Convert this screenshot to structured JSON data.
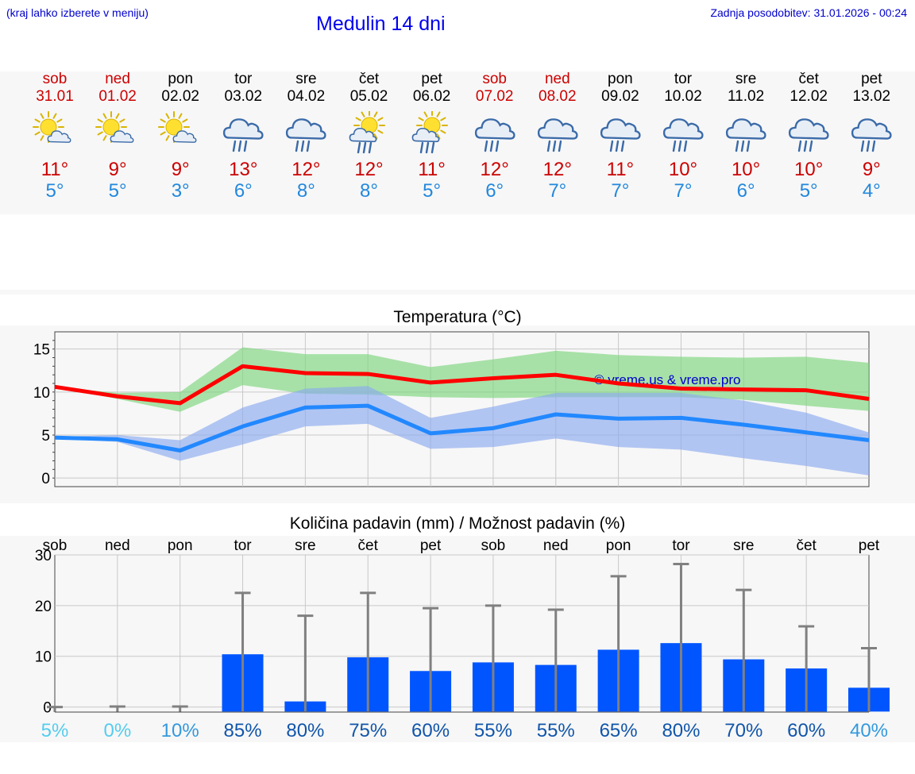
{
  "header": {
    "menu_hint": "(kraj lahko izberete v meniju)",
    "title": "Medulin 14 dni",
    "updated": "Zadnja posodobitev: 31.01.2026 - 00:24"
  },
  "colors": {
    "weekend": "#cc0000",
    "weekday": "#000000",
    "max_temp": "#cc0000",
    "min_temp": "#2288dd",
    "bar": "#0055ff",
    "whisker": "#808080"
  },
  "days": [
    {
      "name": "sob",
      "date": "31.01",
      "weekend": true,
      "icon": "sun-cloud-icon",
      "tmax": "11°",
      "tmin": "5°"
    },
    {
      "name": "ned",
      "date": "01.02",
      "weekend": true,
      "icon": "sun-cloud-icon",
      "tmax": "9°",
      "tmin": "5°"
    },
    {
      "name": "pon",
      "date": "02.02",
      "weekend": false,
      "icon": "sun-cloud-icon",
      "tmax": "9°",
      "tmin": "3°"
    },
    {
      "name": "tor",
      "date": "03.02",
      "weekend": false,
      "icon": "rain-cloud-icon",
      "tmax": "13°",
      "tmin": "6°"
    },
    {
      "name": "sre",
      "date": "04.02",
      "weekend": false,
      "icon": "rain-cloud-icon",
      "tmax": "12°",
      "tmin": "8°"
    },
    {
      "name": "čet",
      "date": "05.02",
      "weekend": false,
      "icon": "sun-rain-icon",
      "tmax": "12°",
      "tmin": "8°"
    },
    {
      "name": "pet",
      "date": "06.02",
      "weekend": false,
      "icon": "sun-rain-icon",
      "tmax": "11°",
      "tmin": "5°"
    },
    {
      "name": "sob",
      "date": "07.02",
      "weekend": true,
      "icon": "rain-cloud-icon",
      "tmax": "12°",
      "tmin": "6°"
    },
    {
      "name": "ned",
      "date": "08.02",
      "weekend": true,
      "icon": "rain-cloud-icon",
      "tmax": "12°",
      "tmin": "7°"
    },
    {
      "name": "pon",
      "date": "09.02",
      "weekend": false,
      "icon": "rain-cloud-icon",
      "tmax": "11°",
      "tmin": "7°"
    },
    {
      "name": "tor",
      "date": "10.02",
      "weekend": false,
      "icon": "rain-cloud-icon",
      "tmax": "10°",
      "tmin": "7°"
    },
    {
      "name": "sre",
      "date": "11.02",
      "weekend": false,
      "icon": "rain-cloud-icon",
      "tmax": "10°",
      "tmin": "6°"
    },
    {
      "name": "čet",
      "date": "12.02",
      "weekend": false,
      "icon": "rain-cloud-icon",
      "tmax": "10°",
      "tmin": "5°"
    },
    {
      "name": "pet",
      "date": "13.02",
      "weekend": false,
      "icon": "rain-cloud-icon",
      "tmax": "9°",
      "tmin": "4°"
    }
  ],
  "chart_data": [
    {
      "type": "line",
      "title": "Temperatura (°C)",
      "watermark": "© vreme.us & vreme.pro",
      "x": [
        0,
        1,
        2,
        3,
        4,
        5,
        6,
        7,
        8,
        9,
        10,
        11,
        12,
        13
      ],
      "ylim": [
        -1,
        17
      ],
      "yticks": [
        0,
        5,
        10,
        15
      ],
      "series": [
        {
          "name": "max",
          "color": "#ff0000",
          "values": [
            10.6,
            9.5,
            8.7,
            13.0,
            12.2,
            12.1,
            11.1,
            11.6,
            12.0,
            11.0,
            10.4,
            10.3,
            10.2,
            9.2
          ]
        },
        {
          "name": "min",
          "color": "#2288ff",
          "values": [
            4.7,
            4.5,
            3.2,
            6.0,
            8.2,
            8.4,
            5.2,
            5.8,
            7.4,
            6.9,
            7.0,
            6.2,
            5.3,
            4.4
          ]
        }
      ],
      "bands": [
        {
          "name": "max-range",
          "color": "#7dd67d",
          "low": [
            10.6,
            9.2,
            7.7,
            10.8,
            9.8,
            9.7,
            9.4,
            9.3,
            9.4,
            9.4,
            9.4,
            9.1,
            8.4,
            7.8
          ],
          "high": [
            10.6,
            9.9,
            10.0,
            15.2,
            14.4,
            14.4,
            12.9,
            13.8,
            14.8,
            14.3,
            14.1,
            14.0,
            14.1,
            13.4
          ]
        },
        {
          "name": "min-range",
          "color": "#8cabf0",
          "low": [
            4.6,
            4.2,
            2.0,
            3.9,
            6.0,
            6.3,
            3.4,
            3.6,
            4.6,
            3.6,
            3.3,
            2.3,
            1.4,
            0.3
          ],
          "high": [
            4.8,
            5.0,
            4.4,
            8.2,
            10.4,
            10.7,
            7.0,
            8.3,
            9.9,
            9.9,
            9.9,
            9.0,
            7.6,
            5.3
          ]
        }
      ]
    },
    {
      "type": "bar",
      "title": "Količina padavin (mm) / Možnost padavin (%)",
      "categories": [
        "sob",
        "ned",
        "pon",
        "tor",
        "sre",
        "čet",
        "pet",
        "sob",
        "ned",
        "pon",
        "tor",
        "sre",
        "čet",
        "pet"
      ],
      "ylim": [
        -1,
        30
      ],
      "yticks": [
        0,
        10,
        20,
        30
      ],
      "values": [
        0,
        0,
        0,
        10.4,
        1.1,
        9.8,
        7.1,
        8.8,
        8.3,
        11.3,
        12.6,
        9.4,
        7.6,
        3.8
      ],
      "whisker_max": [
        0,
        0.1,
        0.1,
        22.5,
        18.0,
        22.5,
        19.5,
        20.0,
        19.2,
        25.8,
        28.2,
        23.1,
        15.9,
        11.6
      ],
      "probability": [
        "5%",
        "0%",
        "10%",
        "85%",
        "80%",
        "75%",
        "60%",
        "55%",
        "55%",
        "65%",
        "80%",
        "70%",
        "60%",
        "40%"
      ],
      "probability_colors": [
        "#55ccee",
        "#55ccee",
        "#3399dd",
        "#1155aa",
        "#1155aa",
        "#1155aa",
        "#1155aa",
        "#1155aa",
        "#1155aa",
        "#1155aa",
        "#1155aa",
        "#1155aa",
        "#1155aa",
        "#3399dd"
      ]
    }
  ]
}
